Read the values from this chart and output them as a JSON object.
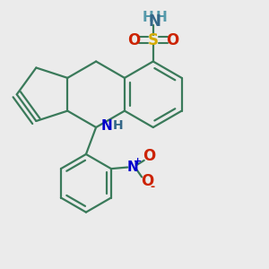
{
  "background_color": "#ebebeb",
  "bond_color": "#3a7a5a",
  "bond_width": 1.6,
  "figsize": [
    3.0,
    3.0
  ],
  "dpi": 100,
  "xlim": [
    0.05,
    0.95
  ],
  "ylim": [
    0.05,
    0.98
  ]
}
